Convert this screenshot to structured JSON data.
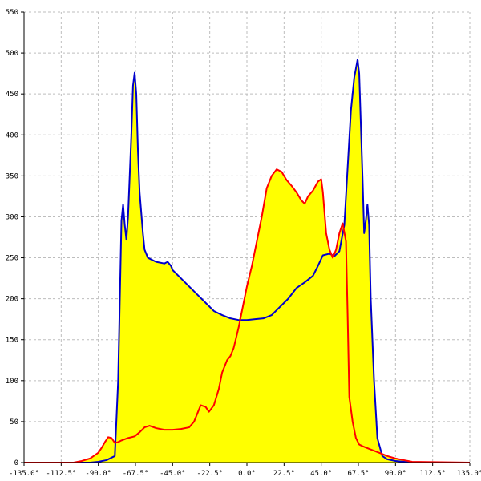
{
  "chart_data": {
    "type": "area",
    "title": "",
    "xlabel": "",
    "ylabel": "",
    "xlim": [
      -135,
      135
    ],
    "ylim": [
      0,
      550
    ],
    "grid": true,
    "fill_color": "#ffff00",
    "x_ticks": [
      {
        "value": -135,
        "label": "-135.0°"
      },
      {
        "value": -112.5,
        "label": "-112.5°"
      },
      {
        "value": -90,
        "label": "-90.0°"
      },
      {
        "value": -67.5,
        "label": "-67.5°"
      },
      {
        "value": -45,
        "label": "-45.0°"
      },
      {
        "value": -22.5,
        "label": "-22.5°"
      },
      {
        "value": 0,
        "label": "0.0°"
      },
      {
        "value": 22.5,
        "label": "22.5°"
      },
      {
        "value": 45,
        "label": "45.0°"
      },
      {
        "value": 67.5,
        "label": "67.5°"
      },
      {
        "value": 90,
        "label": "90.0°"
      },
      {
        "value": 112.5,
        "label": "112.5°"
      },
      {
        "value": 135,
        "label": "135.0°"
      }
    ],
    "y_ticks": [
      {
        "value": 0,
        "label": "0"
      },
      {
        "value": 50,
        "label": "50"
      },
      {
        "value": 100,
        "label": "100"
      },
      {
        "value": 150,
        "label": "150"
      },
      {
        "value": 200,
        "label": "200"
      },
      {
        "value": 250,
        "label": "250"
      },
      {
        "value": 300,
        "label": "300"
      },
      {
        "value": 350,
        "label": "350"
      },
      {
        "value": 400,
        "label": "400"
      },
      {
        "value": 450,
        "label": "450"
      },
      {
        "value": 500,
        "label": "500"
      },
      {
        "value": 550,
        "label": "550"
      }
    ],
    "series": [
      {
        "color": "#0000cc",
        "points": [
          [
            -135,
            0
          ],
          [
            -95,
            0
          ],
          [
            -90,
            1
          ],
          [
            -85,
            3
          ],
          [
            -80,
            8
          ],
          [
            -78,
            100
          ],
          [
            -76,
            295
          ],
          [
            -75,
            315
          ],
          [
            -74,
            290
          ],
          [
            -73,
            272
          ],
          [
            -72,
            300
          ],
          [
            -70,
            400
          ],
          [
            -69,
            460
          ],
          [
            -68,
            476
          ],
          [
            -67,
            450
          ],
          [
            -66,
            380
          ],
          [
            -65,
            330
          ],
          [
            -63,
            280
          ],
          [
            -62,
            260
          ],
          [
            -60,
            250
          ],
          [
            -55,
            245
          ],
          [
            -50,
            243
          ],
          [
            -48,
            245
          ],
          [
            -46,
            240
          ],
          [
            -45,
            235
          ],
          [
            -40,
            225
          ],
          [
            -35,
            215
          ],
          [
            -30,
            205
          ],
          [
            -25,
            195
          ],
          [
            -20,
            185
          ],
          [
            -15,
            180
          ],
          [
            -10,
            176
          ],
          [
            -5,
            174
          ],
          [
            0,
            174
          ],
          [
            5,
            175
          ],
          [
            10,
            176
          ],
          [
            15,
            180
          ],
          [
            20,
            190
          ],
          [
            25,
            200
          ],
          [
            30,
            213
          ],
          [
            35,
            220
          ],
          [
            40,
            228
          ],
          [
            43,
            240
          ],
          [
            46,
            253
          ],
          [
            50,
            255
          ],
          [
            53,
            252
          ],
          [
            56,
            258
          ],
          [
            59,
            290
          ],
          [
            61,
            360
          ],
          [
            63,
            430
          ],
          [
            65,
            470
          ],
          [
            67,
            492
          ],
          [
            68,
            475
          ],
          [
            70,
            350
          ],
          [
            71,
            280
          ],
          [
            72,
            295
          ],
          [
            73,
            315
          ],
          [
            74,
            290
          ],
          [
            75,
            200
          ],
          [
            77,
            100
          ],
          [
            79,
            30
          ],
          [
            82,
            8
          ],
          [
            85,
            4
          ],
          [
            90,
            2
          ],
          [
            100,
            0
          ],
          [
            135,
            0
          ]
        ]
      },
      {
        "color": "#ff0000",
        "points": [
          [
            -135,
            0
          ],
          [
            -105,
            0
          ],
          [
            -100,
            2
          ],
          [
            -95,
            5
          ],
          [
            -90,
            12
          ],
          [
            -88,
            18
          ],
          [
            -86,
            25
          ],
          [
            -84,
            31
          ],
          [
            -82,
            30
          ],
          [
            -80,
            24
          ],
          [
            -78,
            25
          ],
          [
            -76,
            27
          ],
          [
            -72,
            30
          ],
          [
            -68,
            32
          ],
          [
            -65,
            37
          ],
          [
            -62,
            43
          ],
          [
            -59,
            45
          ],
          [
            -55,
            42
          ],
          [
            -50,
            40
          ],
          [
            -45,
            40
          ],
          [
            -40,
            41
          ],
          [
            -35,
            43
          ],
          [
            -32,
            50
          ],
          [
            -30,
            60
          ],
          [
            -28,
            70
          ],
          [
            -25,
            68
          ],
          [
            -23,
            62
          ],
          [
            -20,
            70
          ],
          [
            -17,
            90
          ],
          [
            -15,
            110
          ],
          [
            -12,
            125
          ],
          [
            -10,
            130
          ],
          [
            -8,
            140
          ],
          [
            -5,
            165
          ],
          [
            -2,
            195
          ],
          [
            0,
            215
          ],
          [
            3,
            240
          ],
          [
            6,
            270
          ],
          [
            9,
            300
          ],
          [
            12,
            335
          ],
          [
            15,
            350
          ],
          [
            18,
            358
          ],
          [
            21,
            355
          ],
          [
            24,
            345
          ],
          [
            27,
            338
          ],
          [
            30,
            330
          ],
          [
            33,
            320
          ],
          [
            35,
            316
          ],
          [
            37,
            325
          ],
          [
            40,
            332
          ],
          [
            43,
            343
          ],
          [
            45,
            346
          ],
          [
            46,
            330
          ],
          [
            48,
            280
          ],
          [
            50,
            260
          ],
          [
            52,
            250
          ],
          [
            54,
            260
          ],
          [
            56,
            280
          ],
          [
            58,
            292
          ],
          [
            60,
            270
          ],
          [
            61,
            180
          ],
          [
            62,
            80
          ],
          [
            64,
            50
          ],
          [
            66,
            30
          ],
          [
            68,
            22
          ],
          [
            70,
            20
          ],
          [
            75,
            16
          ],
          [
            80,
            12
          ],
          [
            85,
            8
          ],
          [
            90,
            5
          ],
          [
            95,
            3
          ],
          [
            100,
            1
          ],
          [
            135,
            0
          ]
        ]
      }
    ]
  }
}
